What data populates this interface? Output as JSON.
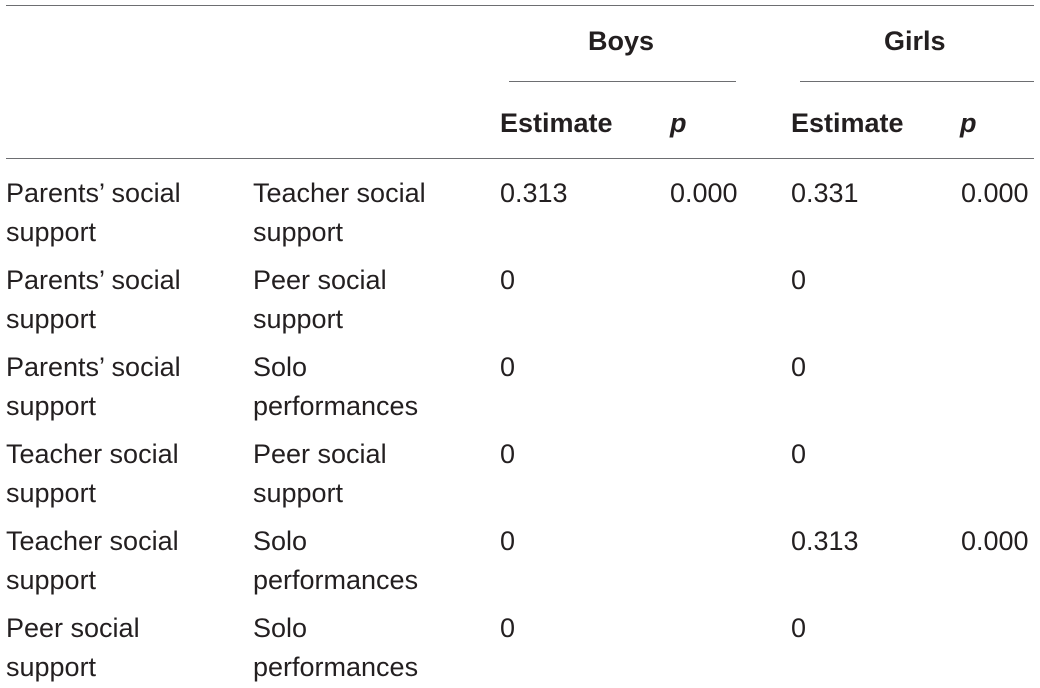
{
  "table": {
    "group_headers": [
      "Boys",
      "Girls"
    ],
    "sub_headers": {
      "boys_estimate": "Estimate",
      "boys_p": "p",
      "girls_estimate": "Estimate",
      "girls_p": "p"
    },
    "rows": [
      {
        "var1": [
          "Parents’ social",
          "support"
        ],
        "var2": [
          "Teacher social",
          "support"
        ],
        "boys_estimate": "0.313",
        "boys_p": "0.000",
        "girls_estimate": "0.331",
        "girls_p": "0.000"
      },
      {
        "var1": [
          "Parents’ social",
          "support"
        ],
        "var2": [
          "Peer social",
          "support"
        ],
        "boys_estimate": "0",
        "boys_p": "",
        "girls_estimate": "0",
        "girls_p": ""
      },
      {
        "var1": [
          "Parents’ social",
          "support"
        ],
        "var2": [
          "Solo",
          "performances"
        ],
        "boys_estimate": "0",
        "boys_p": "",
        "girls_estimate": "0",
        "girls_p": ""
      },
      {
        "var1": [
          "Teacher social",
          "support"
        ],
        "var2": [
          "Peer social",
          "support"
        ],
        "boys_estimate": "0",
        "boys_p": "",
        "girls_estimate": "0",
        "girls_p": ""
      },
      {
        "var1": [
          "Teacher social",
          "support"
        ],
        "var2": [
          "Solo",
          "performances"
        ],
        "boys_estimate": "0",
        "boys_p": "",
        "girls_estimate": "0.313",
        "girls_p": "0.000"
      },
      {
        "var1": [
          "Peer social",
          "support"
        ],
        "var2": [
          "Solo",
          "performances"
        ],
        "boys_estimate": "0",
        "boys_p": "",
        "girls_estimate": "0",
        "girls_p": ""
      }
    ]
  }
}
